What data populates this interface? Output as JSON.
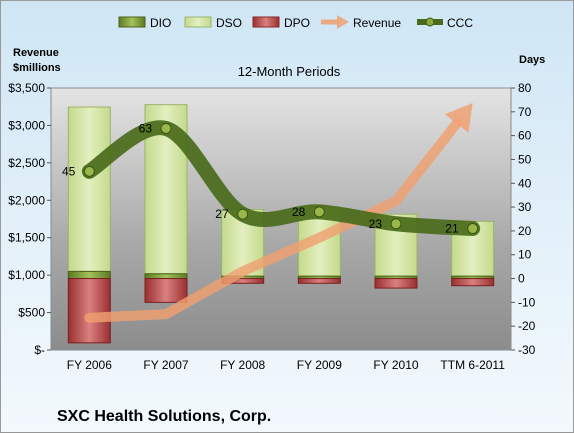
{
  "chart_data": {
    "type": "bar",
    "title": "12-Month Periods",
    "company": "SXC Health Solutions, Corp.",
    "categories": [
      "FY 2006",
      "FY 2007",
      "FY 2008",
      "FY 2009",
      "FY 2010",
      "TTM 6-2011"
    ],
    "left_axis": {
      "title_line1": "Revenue",
      "title_line2": "$millions",
      "ylim": [
        0,
        3500
      ],
      "ticks": [
        0,
        500,
        1000,
        1500,
        2000,
        2500,
        3000,
        3500
      ],
      "tick_labels": [
        "$-",
        "$500",
        "$1,000",
        "$1,500",
        "$2,000",
        "$2,500",
        "$3,000",
        "$3,500"
      ]
    },
    "right_axis": {
      "title": "Days",
      "ylim": [
        -30,
        80
      ],
      "ticks": [
        -30,
        -20,
        -10,
        0,
        10,
        20,
        30,
        40,
        50,
        60,
        70,
        80
      ],
      "tick_labels": [
        "-30",
        "-20",
        "-10",
        "0",
        "10",
        "20",
        "30",
        "40",
        "50",
        "60",
        "70",
        "80"
      ]
    },
    "series": [
      {
        "name": "DIO",
        "type": "stacked-bar",
        "axis": "days",
        "color": "#6e8b2e",
        "values": [
          3,
          2,
          1,
          1,
          1,
          1
        ]
      },
      {
        "name": "DSO",
        "type": "stacked-bar",
        "axis": "days",
        "color": "#d6e8a8",
        "values": [
          69,
          71,
          28,
          29,
          26,
          23
        ]
      },
      {
        "name": "DPO",
        "type": "stacked-bar",
        "axis": "days",
        "color": "#b84a4a",
        "values": [
          -27,
          -10,
          -2,
          -2,
          -4,
          -3
        ]
      },
      {
        "name": "Revenue",
        "type": "arrow-line",
        "axis": "revenue",
        "color": "#f0a070",
        "values": [
          430,
          480,
          1050,
          1500,
          1990,
          3300
        ]
      },
      {
        "name": "CCC",
        "type": "smooth-line",
        "axis": "days",
        "color": "#4a6b1a",
        "values": [
          45,
          63,
          27,
          28,
          23,
          21
        ],
        "labels": [
          "45",
          "63",
          "27",
          "28",
          "23",
          "21"
        ]
      }
    ],
    "legend": [
      "DIO",
      "DSO",
      "DPO",
      "Revenue",
      "CCC"
    ],
    "legend_position": "top",
    "grid": false
  }
}
